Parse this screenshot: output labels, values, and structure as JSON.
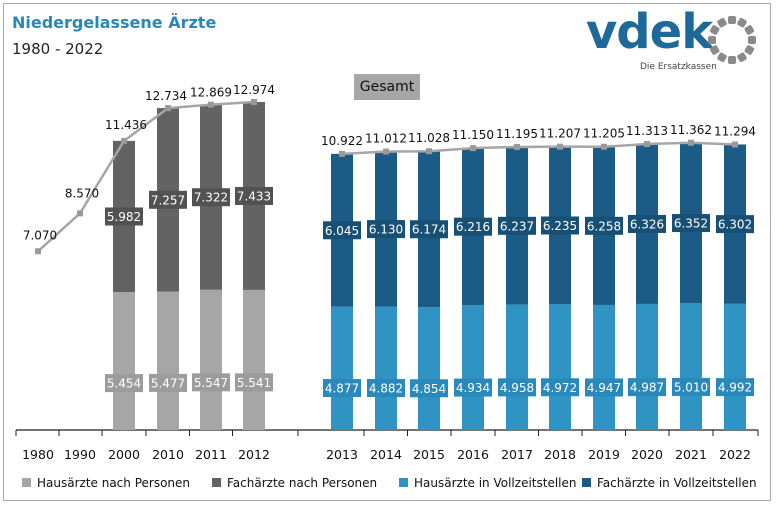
{
  "title": "Niedergelassene Ärzte",
  "subtitle": "1980 - 2022",
  "logo": {
    "word": "vdek",
    "tagline": "Die Ersatzkassen",
    "accent": "#1d6a9a",
    "ring_color": "#8a8a8a"
  },
  "gesamt_label": "Gesamt",
  "colors": {
    "hausaerzte_personen": "#a6a6a6",
    "fachaerzte_personen": "#636363",
    "hausaerzte_vz": "#2f93c4",
    "fachaerzte_vz": "#1b5b86",
    "total_line": "#a6a6a6"
  },
  "legend": [
    {
      "label": "Hausärzte nach Personen",
      "color": "#a6a6a6"
    },
    {
      "label": "Fachärzte nach Personen",
      "color": "#636363"
    },
    {
      "label": "Hausärzte in Vollzeitstellen",
      "color": "#2f93c4"
    },
    {
      "label": "Fachärzte in Vollzeitstellen",
      "color": "#1b5b86"
    }
  ],
  "chart_data": {
    "type": "bar",
    "stacked": true,
    "categories": [
      "1980",
      "1990",
      "2000",
      "2010",
      "2011",
      "2012",
      "2013",
      "2014",
      "2015",
      "2016",
      "2017",
      "2018",
      "2019",
      "2020",
      "2021",
      "2022"
    ],
    "series": [
      {
        "name": "Hausärzte nach Personen",
        "values": [
          null,
          null,
          5454,
          5477,
          5547,
          5541,
          null,
          null,
          null,
          null,
          null,
          null,
          null,
          null,
          null,
          null
        ],
        "labels": [
          "",
          "",
          "5.454",
          "5.477",
          "5.547",
          "5.541",
          "",
          "",
          "",
          "",
          "",
          "",
          "",
          "",
          "",
          ""
        ]
      },
      {
        "name": "Fachärzte nach Personen",
        "values": [
          null,
          null,
          5982,
          7257,
          7322,
          7433,
          null,
          null,
          null,
          null,
          null,
          null,
          null,
          null,
          null,
          null
        ],
        "labels": [
          "",
          "",
          "5.982",
          "7.257",
          "7.322",
          "7.433",
          "",
          "",
          "",
          "",
          "",
          "",
          "",
          "",
          "",
          ""
        ]
      },
      {
        "name": "Hausärzte in Vollzeitstellen",
        "values": [
          null,
          null,
          null,
          null,
          null,
          null,
          4877,
          4882,
          4854,
          4934,
          4958,
          4972,
          4947,
          4987,
          5010,
          4992
        ],
        "labels": [
          "",
          "",
          "",
          "",
          "",
          "",
          "4.877",
          "4.882",
          "4.854",
          "4.934",
          "4.958",
          "4.972",
          "4.947",
          "4.987",
          "5.010",
          "4.992"
        ]
      },
      {
        "name": "Fachärzte in Vollzeitstellen",
        "values": [
          null,
          null,
          null,
          null,
          null,
          null,
          6045,
          6130,
          6174,
          6216,
          6237,
          6235,
          6258,
          6326,
          6352,
          6302
        ],
        "labels": [
          "",
          "",
          "",
          "",
          "",
          "",
          "6.045",
          "6.130",
          "6.174",
          "6.216",
          "6.237",
          "6.235",
          "6.258",
          "6.326",
          "6.352",
          "6.302"
        ]
      }
    ],
    "total": {
      "name": "Gesamt",
      "values": [
        7070,
        8570,
        11436,
        12734,
        12869,
        12974,
        10922,
        11012,
        11028,
        11150,
        11195,
        11207,
        11205,
        11313,
        11362,
        11294
      ],
      "labels": [
        "7.070",
        "8.570",
        "11.436",
        "12.734",
        "12.869",
        "12.974",
        "10.922",
        "11.012",
        "11.028",
        "11.150",
        "11.195",
        "11.207",
        "11.205",
        "11.313",
        "11.362",
        "11.294"
      ]
    },
    "ylim": [
      0,
      14000
    ],
    "grid": false,
    "legend_position": "bottom"
  }
}
